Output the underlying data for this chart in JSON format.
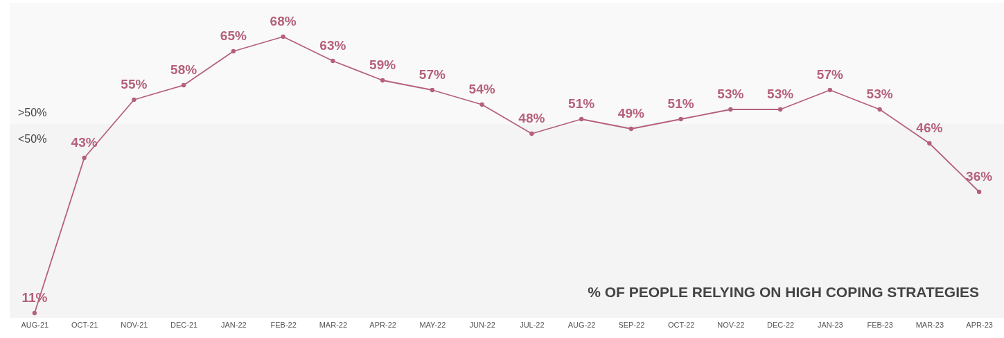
{
  "chart_data": {
    "type": "line",
    "title": "% OF PEOPLE RELYING ON HIGH COPING STRATEGIES",
    "categories": [
      "AUG-21",
      "OCT-21",
      "NOV-21",
      "DEC-21",
      "JAN-22",
      "FEB-22",
      "MAR-22",
      "APR-22",
      "MAY-22",
      "JUN-22",
      "JUL-22",
      "AUG-22",
      "SEP-22",
      "OCT-22",
      "NOV-22",
      "DEC-22",
      "JAN-23",
      "FEB-23",
      "MAR-23",
      "APR-23"
    ],
    "series": [
      {
        "color": "#b5607a",
        "values": [
          11,
          43,
          55,
          58,
          65,
          68,
          63,
          59,
          57,
          54,
          48,
          51,
          49,
          51,
          53,
          53,
          57,
          53,
          46,
          36
        ],
        "value_labels": [
          "11%",
          "43%",
          "55%",
          "58%",
          "65%",
          "68%",
          "63%",
          "59%",
          "57%",
          "54%",
          "48%",
          "51%",
          "49%",
          "51%",
          "53%",
          "53%",
          "57%",
          "53%",
          "46%",
          "36%"
        ]
      }
    ],
    "ylim": [
      10,
      75
    ],
    "tick_labels": "x",
    "grid": false,
    "marker": "circle",
    "line_style": "solid",
    "bands": [
      {
        "axis": "y",
        "from": 10,
        "to": 50,
        "label": "<50%",
        "color": "#f4f4f4"
      },
      {
        "axis": "y",
        "from": 50,
        "to": 75,
        "label": ">50%",
        "color": "#f9f9f9"
      }
    ]
  }
}
